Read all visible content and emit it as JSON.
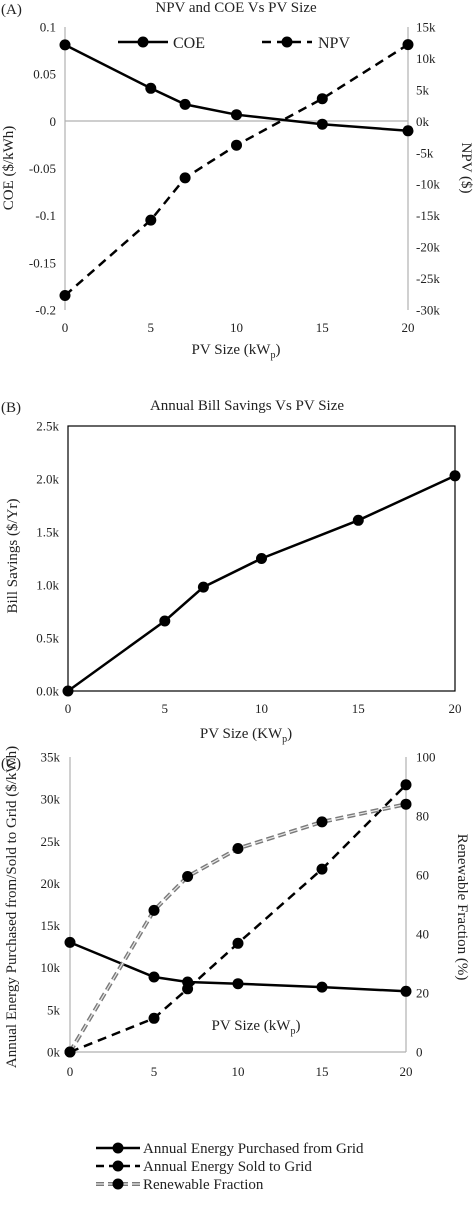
{
  "chart_data": [
    {
      "type": "line",
      "panel_label": "(A)",
      "title": "NPV and COE Vs PV Size",
      "xlabel": "PV Size (kW",
      "xlabel_sub": "p",
      "xlabel_end": ")",
      "ylabel": "COE ($/kWh)",
      "y2label": "NPV ($)",
      "x": [
        0,
        5,
        7,
        10,
        15,
        20
      ],
      "xlim": [
        0,
        20
      ],
      "ylim": [
        -0.2,
        0.1
      ],
      "y2lim": [
        -30000,
        15000
      ],
      "x_ticks": [
        "0",
        "5",
        "10",
        "15",
        "20"
      ],
      "y_ticks": [
        "0.1",
        "0.05",
        "0",
        "-0.05",
        "-0.1",
        "-0.15",
        "-0.2"
      ],
      "y2_ticks": [
        "15k",
        "10k",
        "5k",
        "0k",
        "-5k",
        "-10k",
        "-15k",
        "-20k",
        "-25k",
        "-30k"
      ],
      "legend_position": "top",
      "series": [
        {
          "name": "COE",
          "axis": "left",
          "style": "solid",
          "values": [
            0.081,
            0.035,
            0.018,
            0.007,
            -0.003,
            -0.01
          ]
        },
        {
          "name": "NPV",
          "axis": "right",
          "style": "dashed",
          "values": [
            -27700,
            -15700,
            -9000,
            -3800,
            3600,
            12200
          ]
        }
      ],
      "zero_line": true,
      "grid": false
    },
    {
      "type": "line",
      "panel_label": "(B)",
      "title": "Annual Bill Savings Vs PV Size",
      "xlabel": "PV Size (KW",
      "xlabel_sub": "p",
      "xlabel_end": ")",
      "ylabel": "Bill Savings ($/Yr)",
      "x": [
        0,
        5,
        7,
        10,
        15,
        20
      ],
      "xlim": [
        0,
        20
      ],
      "ylim": [
        0,
        2500
      ],
      "x_ticks": [
        "0",
        "5",
        "10",
        "15",
        "20"
      ],
      "y_ticks": [
        "2.5k",
        "2.0k",
        "1.5k",
        "1.0k",
        "0.5k",
        "0.0k"
      ],
      "series": [
        {
          "style": "solid",
          "values": [
            0,
            660,
            980,
            1250,
            1610,
            2030
          ]
        }
      ],
      "grid": false
    },
    {
      "type": "line",
      "panel_label": "(C)",
      "title": "",
      "xlabel": "PV Size (kW",
      "xlabel_sub": "p",
      "xlabel_end": ")",
      "ylabel": "Annual Energy Purchased from/Sold to Grid ($/kWh)",
      "y2label": "Renewable Fraction (%)",
      "x": [
        0,
        5,
        7,
        10,
        15,
        20
      ],
      "xlim": [
        0,
        20
      ],
      "ylim": [
        0,
        35000
      ],
      "y2lim": [
        0,
        100
      ],
      "x_ticks": [
        "0",
        "5",
        "10",
        "15",
        "20"
      ],
      "y_ticks": [
        "35k",
        "30k",
        "25k",
        "20k",
        "15k",
        "10k",
        "5k",
        "0k"
      ],
      "y2_ticks": [
        "100",
        "80",
        "60",
        "40",
        "20",
        "0"
      ],
      "legend_position": "bottom",
      "series": [
        {
          "name": "Annual Energy Purchased from Grid",
          "axis": "left",
          "style": "solid",
          "values": [
            13000,
            8900,
            8300,
            8100,
            7700,
            7200
          ]
        },
        {
          "name": "Annual Energy Sold to Grid",
          "axis": "left",
          "style": "dashed",
          "values": [
            0,
            4000,
            7500,
            12900,
            21700,
            31700
          ]
        },
        {
          "name": "Renewable Fraction",
          "axis": "right",
          "style": "double-dashed",
          "values": [
            0,
            48,
            59.5,
            69,
            78,
            84
          ]
        }
      ],
      "grid": false
    }
  ]
}
